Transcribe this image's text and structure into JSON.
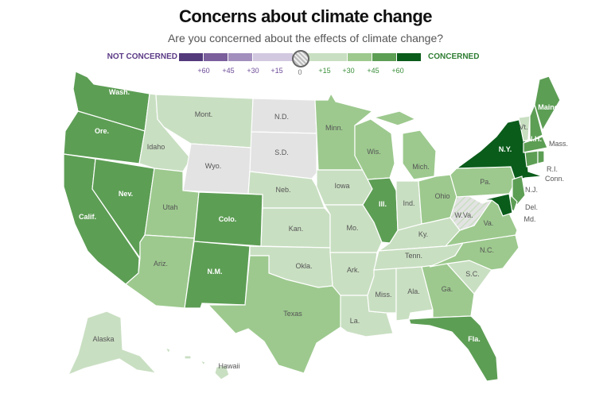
{
  "title": "Concerns about climate change",
  "subtitle": "Are you concerned about the effects of climate change?",
  "legend": {
    "left_label": "NOT CONCERNED",
    "right_label": "CONCERNED",
    "ticks": [
      "+60",
      "+45",
      "+30",
      "+15",
      "0",
      "+15",
      "+30",
      "+45",
      "+60"
    ],
    "colors": {
      "neg60": "#533a7b",
      "neg45": "#7a5f9c",
      "neg30": "#a28fbe",
      "neg15": "#d2c9e0",
      "zero": "#e3e3e3",
      "pos15": "#c9dfc2",
      "pos30": "#9dc98e",
      "pos45": "#5d9e55",
      "pos60": "#0a5c1a"
    }
  },
  "states": {
    "wa": {
      "label": "Wash.",
      "level": "pos45"
    },
    "or": {
      "label": "Ore.",
      "level": "pos45"
    },
    "ca": {
      "label": "Calif.",
      "level": "pos45"
    },
    "nv": {
      "label": "Nev.",
      "level": "pos45"
    },
    "id": {
      "label": "Idaho",
      "level": "pos15"
    },
    "mt": {
      "label": "Mont.",
      "level": "pos15"
    },
    "wy": {
      "label": "Wyo.",
      "level": "zero"
    },
    "ut": {
      "label": "Utah",
      "level": "pos30"
    },
    "co": {
      "label": "Colo.",
      "level": "pos45"
    },
    "az": {
      "label": "Ariz.",
      "level": "pos30"
    },
    "nm": {
      "label": "N.M.",
      "level": "pos45"
    },
    "nd": {
      "label": "N.D.",
      "level": "zero"
    },
    "sd": {
      "label": "S.D.",
      "level": "zero"
    },
    "ne": {
      "label": "Neb.",
      "level": "pos15"
    },
    "ks": {
      "label": "Kan.",
      "level": "pos15"
    },
    "ok": {
      "label": "Okla.",
      "level": "pos15"
    },
    "tx": {
      "label": "Texas",
      "level": "pos30"
    },
    "mn": {
      "label": "Minn.",
      "level": "pos30"
    },
    "ia": {
      "label": "Iowa",
      "level": "pos15"
    },
    "mo": {
      "label": "Mo.",
      "level": "pos15"
    },
    "ar": {
      "label": "Ark.",
      "level": "pos15"
    },
    "la": {
      "label": "La.",
      "level": "pos15"
    },
    "wi": {
      "label": "Wis.",
      "level": "pos30"
    },
    "il": {
      "label": "Ill.",
      "level": "pos45"
    },
    "mi": {
      "label": "Mich.",
      "level": "pos30"
    },
    "in": {
      "label": "Ind.",
      "level": "pos15"
    },
    "oh": {
      "label": "Ohio",
      "level": "pos30"
    },
    "ky": {
      "label": "Ky.",
      "level": "pos15"
    },
    "tn": {
      "label": "Tenn.",
      "level": "pos15"
    },
    "ms": {
      "label": "Miss.",
      "level": "pos15"
    },
    "al": {
      "label": "Ala.",
      "level": "pos15"
    },
    "ga": {
      "label": "Ga.",
      "level": "pos30"
    },
    "fl": {
      "label": "Fla.",
      "level": "pos45"
    },
    "sc": {
      "label": "S.C.",
      "level": "pos15"
    },
    "nc": {
      "label": "N.C.",
      "level": "pos30"
    },
    "va": {
      "label": "Va.",
      "level": "pos30"
    },
    "wv": {
      "label": "W.Va.",
      "level": "zero_hatched"
    },
    "pa": {
      "label": "Pa.",
      "level": "pos30"
    },
    "ny": {
      "label": "N.Y.",
      "level": "pos60"
    },
    "vt": {
      "label": "Vt.",
      "level": "pos15"
    },
    "nh": {
      "label": "N.H.",
      "level": "pos45"
    },
    "me": {
      "label": "Maine",
      "level": "pos45"
    },
    "ma": {
      "label": "Mass.",
      "level": "pos45"
    },
    "ri": {
      "label": "R.I.",
      "level": "pos45"
    },
    "ct": {
      "label": "Conn.",
      "level": "pos45"
    },
    "nj": {
      "label": "N.J.",
      "level": "pos45"
    },
    "de": {
      "label": "Del.",
      "level": "pos45"
    },
    "md": {
      "label": "Md.",
      "level": "pos60"
    },
    "ak": {
      "label": "Alaska",
      "level": "pos15"
    },
    "hi": {
      "label": "Hawaii",
      "level": "pos15"
    }
  }
}
